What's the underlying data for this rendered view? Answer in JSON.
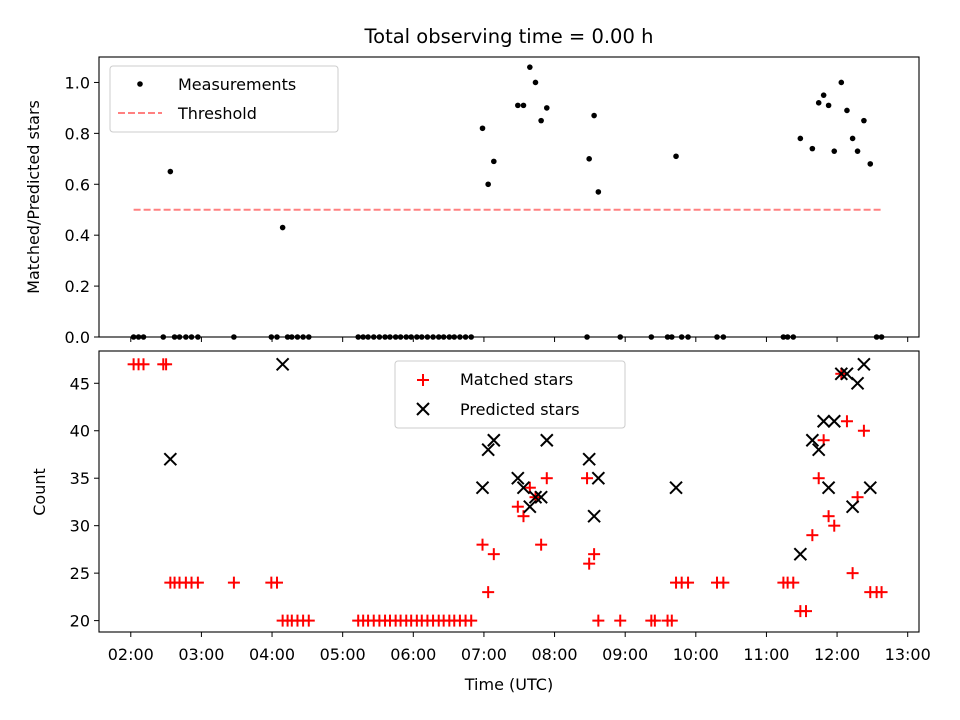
{
  "chart_data": [
    {
      "type": "scatter",
      "title": "Total observing time = 0.00 h",
      "xlabel": "",
      "ylabel": "Matched/Predicted stars",
      "xlim": [
        1.55,
        13.16
      ],
      "ylim": [
        0,
        1.1
      ],
      "yticks": [
        0.0,
        0.2,
        0.4,
        0.6,
        0.8,
        1.0
      ],
      "ytick_labels": [
        "0.0",
        "0.2",
        "0.4",
        "0.6",
        "0.8",
        "1.0"
      ],
      "xticks": [
        2,
        3,
        4,
        5,
        6,
        7,
        8,
        9,
        10,
        11,
        12,
        13
      ],
      "legend_position": "top-left",
      "grid": false,
      "series": [
        {
          "name": "Measurements",
          "kind": "scatter",
          "color": "#000000",
          "x": [
            2.04,
            2.11,
            2.18,
            2.46,
            2.56,
            2.62,
            2.69,
            2.78,
            2.86,
            2.95,
            3.46,
            3.99,
            4.07,
            4.15,
            4.22,
            4.28,
            4.36,
            4.44,
            4.52,
            5.22,
            5.29,
            5.36,
            5.44,
            5.52,
            5.6,
            5.67,
            5.75,
            5.82,
            5.9,
            5.97,
            6.05,
            6.12,
            6.2,
            6.28,
            6.36,
            6.43,
            6.51,
            6.58,
            6.66,
            6.74,
            6.82,
            6.98,
            7.06,
            7.14,
            7.48,
            7.56,
            7.65,
            7.73,
            7.81,
            7.89,
            8.46,
            8.49,
            8.56,
            8.62,
            8.93,
            9.37,
            9.6,
            9.66,
            9.72,
            9.8,
            9.89,
            10.3,
            10.39,
            11.24,
            11.3,
            11.38,
            11.48,
            11.65,
            11.74,
            11.81,
            11.88,
            11.96,
            12.06,
            12.14,
            12.22,
            12.29,
            12.38,
            12.47,
            12.56,
            12.63
          ],
          "y": [
            0,
            0,
            0,
            0,
            0.65,
            0,
            0,
            0,
            0,
            0,
            0,
            0,
            0,
            0.43,
            0,
            0,
            0,
            0,
            0,
            0,
            0,
            0,
            0,
            0,
            0,
            0,
            0,
            0,
            0,
            0,
            0,
            0,
            0,
            0,
            0,
            0,
            0,
            0,
            0,
            0,
            0,
            0.82,
            0.6,
            0.69,
            0.91,
            0.91,
            1.06,
            1.0,
            0.85,
            0.9,
            0,
            0.7,
            0.87,
            0.57,
            0,
            0,
            0,
            0,
            0.71,
            0,
            0,
            0,
            0,
            0,
            0,
            0,
            0.78,
            0.74,
            0.92,
            0.95,
            0.91,
            0.73,
            1.0,
            0.89,
            0.78,
            0.73,
            0.85,
            0.68,
            0,
            0
          ]
        },
        {
          "name": "Threshold",
          "kind": "line",
          "color": "#ff8080",
          "x": [
            2.04,
            12.63
          ],
          "y": [
            0.5,
            0.5
          ]
        }
      ]
    },
    {
      "type": "scatter",
      "title": "",
      "xlabel": "Time (UTC)",
      "ylabel": "Count",
      "xlim": [
        1.55,
        13.16
      ],
      "ylim": [
        18.8,
        48.4
      ],
      "yticks": [
        20,
        25,
        30,
        35,
        40,
        45
      ],
      "ytick_labels": [
        "20",
        "25",
        "30",
        "35",
        "40",
        "45"
      ],
      "xticks": [
        2,
        3,
        4,
        5,
        6,
        7,
        8,
        9,
        10,
        11,
        12,
        13
      ],
      "xtick_labels": [
        "02:00",
        "03:00",
        "04:00",
        "05:00",
        "06:00",
        "07:00",
        "08:00",
        "09:00",
        "10:00",
        "11:00",
        "12:00",
        "13:00"
      ],
      "legend_position": "top-center",
      "grid": false,
      "series": [
        {
          "name": "Matched stars",
          "kind": "plus",
          "color": "#ff0000",
          "x": [
            2.04,
            2.11,
            2.18,
            2.46,
            2.5,
            2.56,
            2.62,
            2.69,
            2.78,
            2.86,
            2.95,
            3.46,
            3.99,
            4.07,
            4.15,
            4.22,
            4.28,
            4.36,
            4.44,
            4.52,
            5.22,
            5.29,
            5.36,
            5.44,
            5.52,
            5.6,
            5.67,
            5.75,
            5.82,
            5.9,
            5.97,
            6.05,
            6.12,
            6.2,
            6.28,
            6.36,
            6.43,
            6.51,
            6.58,
            6.66,
            6.74,
            6.82,
            6.98,
            7.06,
            7.14,
            7.48,
            7.56,
            7.65,
            7.73,
            7.81,
            7.89,
            8.46,
            8.49,
            8.56,
            8.62,
            8.93,
            9.37,
            9.42,
            9.6,
            9.66,
            9.72,
            9.8,
            9.89,
            10.3,
            10.39,
            11.24,
            11.3,
            11.38,
            11.48,
            11.56,
            11.65,
            11.74,
            11.81,
            11.88,
            11.96,
            12.06,
            12.14,
            12.22,
            12.29,
            12.38,
            12.47,
            12.56,
            12.63
          ],
          "y": [
            47,
            47,
            47,
            47,
            47,
            24,
            24,
            24,
            24,
            24,
            24,
            24,
            24,
            24,
            20,
            20,
            20,
            20,
            20,
            20,
            20,
            20,
            20,
            20,
            20,
            20,
            20,
            20,
            20,
            20,
            20,
            20,
            20,
            20,
            20,
            20,
            20,
            20,
            20,
            20,
            20,
            20,
            28,
            23,
            27,
            32,
            31,
            34,
            33,
            28,
            35,
            35,
            26,
            27,
            20,
            20,
            20,
            20,
            20,
            20,
            24,
            24,
            24,
            24,
            24,
            24,
            24,
            24,
            21,
            21,
            29,
            35,
            39,
            31,
            30,
            46,
            41,
            25,
            33,
            40,
            23,
            23,
            23
          ]
        },
        {
          "name": "Predicted stars",
          "kind": "x",
          "color": "#000000",
          "x": [
            2.56,
            4.15,
            6.98,
            7.06,
            7.14,
            7.48,
            7.56,
            7.65,
            7.73,
            7.81,
            7.89,
            8.49,
            8.56,
            8.62,
            9.72,
            11.48,
            11.65,
            11.74,
            11.81,
            11.88,
            11.96,
            12.06,
            12.14,
            12.22,
            12.29,
            12.38,
            12.47
          ],
          "y": [
            37,
            47,
            34,
            38,
            39,
            35,
            34,
            32,
            33,
            33,
            39,
            37,
            31,
            35,
            34,
            27,
            39,
            38,
            41,
            34,
            41,
            46,
            46,
            32,
            45,
            47,
            34
          ]
        }
      ]
    }
  ]
}
